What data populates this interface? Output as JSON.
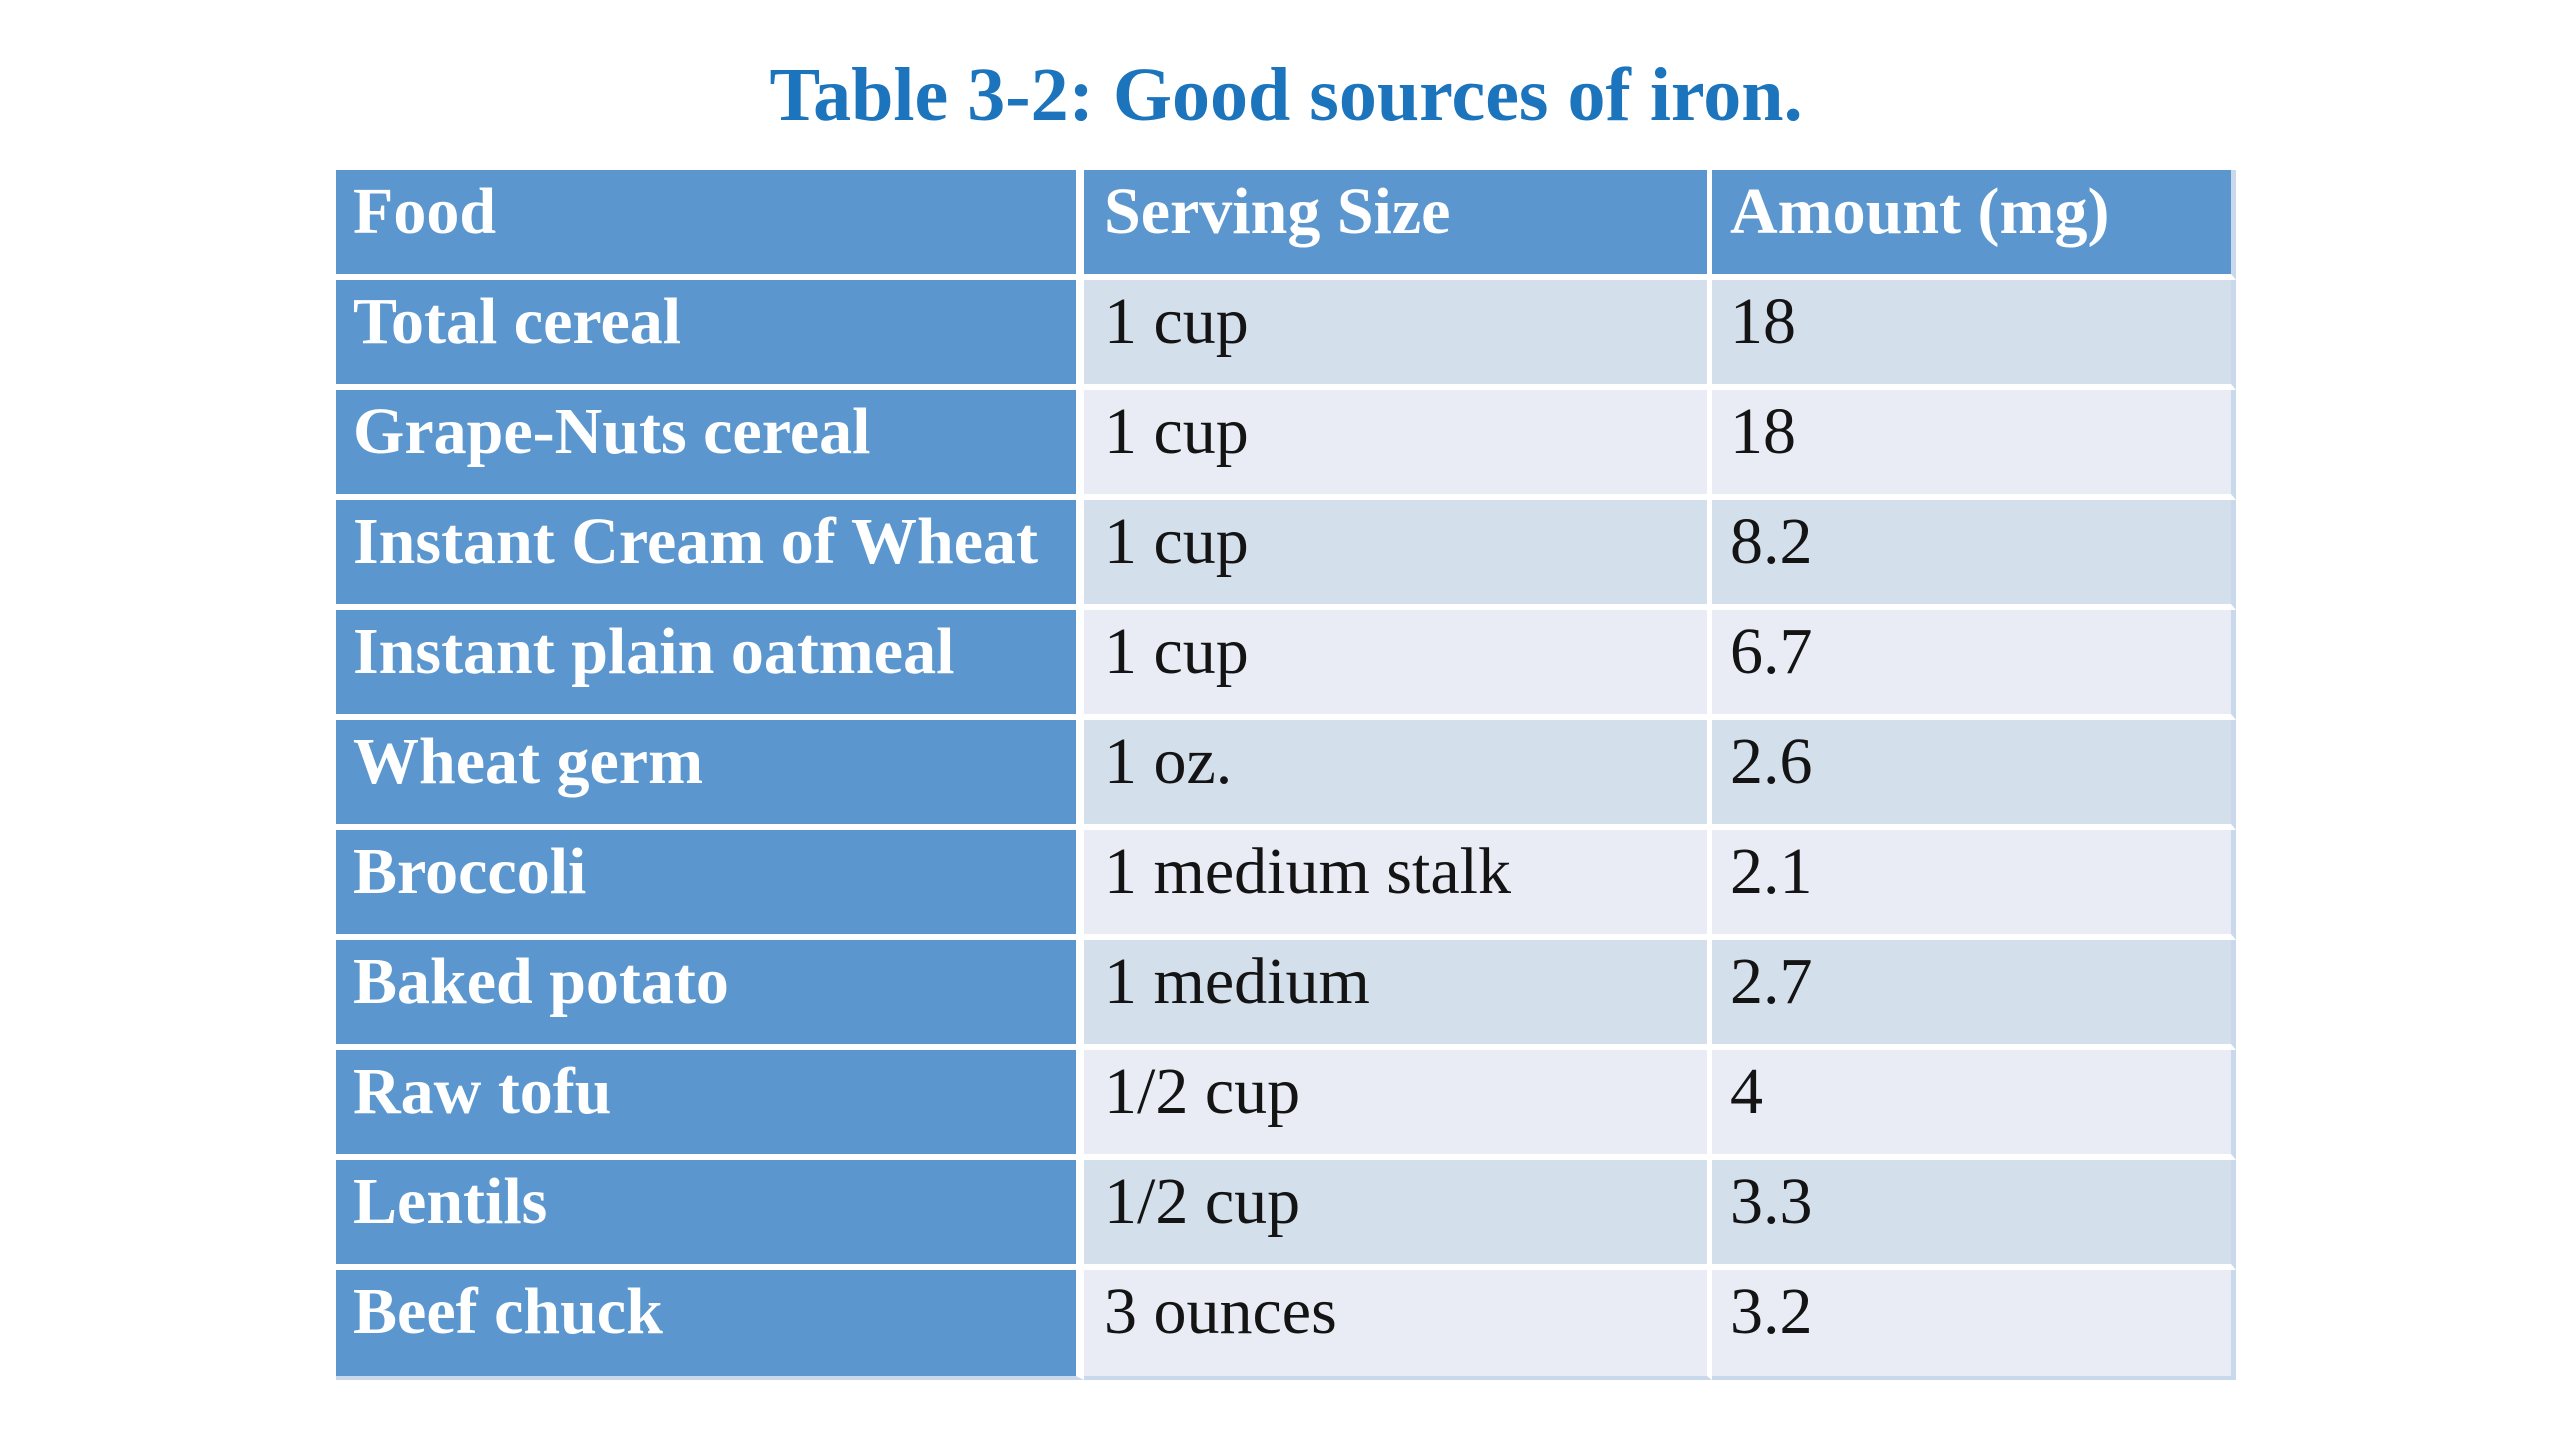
{
  "title": {
    "text": "Table 3-2: Good sources of iron.",
    "color": "#1c75bc"
  },
  "table": {
    "headers": {
      "food": "Food",
      "serving": "Serving Size",
      "amount": "Amount (mg)"
    },
    "rows": [
      {
        "food": "Total cereal",
        "serving": "1 cup",
        "amount": "18"
      },
      {
        "food": "Grape-Nuts cereal",
        "serving": "1 cup",
        "amount": "18"
      },
      {
        "food": "Instant Cream of Wheat",
        "serving": "1 cup",
        "amount": "8.2"
      },
      {
        "food": "Instant plain oatmeal",
        "serving": "1 cup",
        "amount": "6.7"
      },
      {
        "food": "Wheat germ",
        "serving": "1 oz.",
        "amount": "2.6"
      },
      {
        "food": "Broccoli",
        "serving": "1 medium stalk",
        "amount": "2.1"
      },
      {
        "food": "Baked potato",
        "serving": "1 medium",
        "amount": "2.7"
      },
      {
        "food": "Raw tofu",
        "serving": "1/2 cup",
        "amount": "4"
      },
      {
        "food": "Lentils",
        "serving": "1/2 cup",
        "amount": "3.3"
      },
      {
        "food": "Beef chuck",
        "serving": "3 ounces",
        "amount": "3.2"
      }
    ],
    "colors": {
      "header_fill": "#5b97ce",
      "band_dark": "#d4dfec",
      "band_light": "#e9ecf5",
      "separator": "#ffffff",
      "outer_edge": "#c9d9eb",
      "header_text": "#ffffff",
      "body_text": "#141414"
    }
  },
  "chart_data": {
    "type": "table",
    "title": "Table 3-2: Good sources of iron.",
    "columns": [
      "Food",
      "Serving Size",
      "Amount (mg)"
    ],
    "rows": [
      [
        "Total cereal",
        "1 cup",
        18
      ],
      [
        "Grape-Nuts cereal",
        "1 cup",
        18
      ],
      [
        "Instant Cream of Wheat",
        "1 cup",
        8.2
      ],
      [
        "Instant plain oatmeal",
        "1 cup",
        6.7
      ],
      [
        "Wheat germ",
        "1 oz.",
        2.6
      ],
      [
        "Broccoli",
        "1 medium stalk",
        2.1
      ],
      [
        "Baked potato",
        "1 medium",
        2.7
      ],
      [
        "Raw tofu",
        "1/2 cup",
        4
      ],
      [
        "Lentils",
        "1/2 cup",
        3.3
      ],
      [
        "Beef chuck",
        "3 ounces",
        3.2
      ]
    ]
  }
}
